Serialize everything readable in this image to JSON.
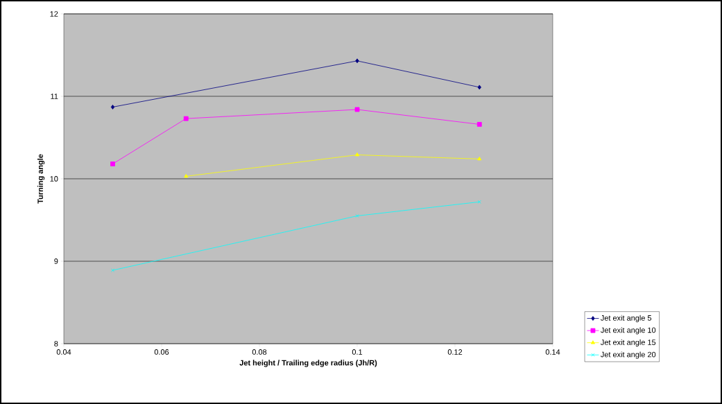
{
  "chart_data": {
    "type": "line",
    "xlabel": "Jet height / Trailing edge radius (Jh/R)",
    "ylabel": "Turning angle",
    "xlim": [
      0.04,
      0.14
    ],
    "xticks": [
      0.04,
      0.06,
      0.08,
      0.1,
      0.12,
      0.14
    ],
    "ylim": [
      8,
      12
    ],
    "yticks": [
      8,
      9,
      10,
      11,
      12
    ],
    "grid": "y",
    "legend": "right",
    "series": [
      {
        "name": "Jet exit angle 5",
        "color": "#000080",
        "marker": "diamond",
        "x": [
          0.05,
          0.1,
          0.125
        ],
        "values": [
          10.87,
          11.43,
          11.11
        ]
      },
      {
        "name": "Jet exit angle 10",
        "color": "#ff00ff",
        "marker": "square",
        "x": [
          0.05,
          0.065,
          0.1,
          0.125
        ],
        "values": [
          10.18,
          10.73,
          10.84,
          10.66
        ]
      },
      {
        "name": "Jet exit angle 15",
        "color": "#ffff00",
        "marker": "triangle",
        "x": [
          0.065,
          0.1,
          0.125
        ],
        "values": [
          10.03,
          10.29,
          10.24
        ]
      },
      {
        "name": "Jet exit angle 20",
        "color": "#00ffff",
        "marker": "cross",
        "x": [
          0.05,
          0.1,
          0.125
        ],
        "values": [
          8.89,
          9.55,
          9.72
        ]
      }
    ]
  }
}
